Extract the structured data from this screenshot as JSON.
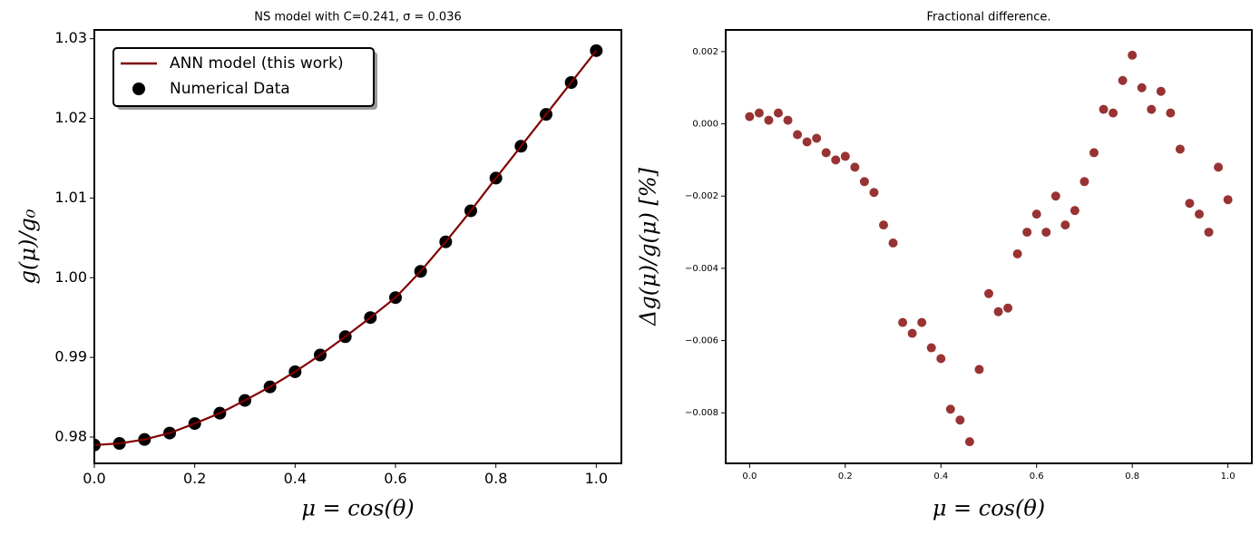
{
  "chart_data": [
    {
      "type": "line",
      "title": "NS model with C=0.241, σ = 0.036",
      "xlabel": "μ = cos(θ)",
      "ylabel": "g(μ)/g₀",
      "x": [
        0,
        0.05,
        0.1,
        0.15,
        0.2,
        0.25,
        0.3,
        0.35,
        0.4,
        0.45,
        0.5,
        0.55,
        0.6,
        0.65,
        0.7,
        0.75,
        0.8,
        0.85,
        0.9,
        0.95,
        1.0
      ],
      "series": [
        {
          "name": "ANN model (this work)",
          "color": "#800000",
          "style": "line",
          "values": [
            0.979,
            0.9792,
            0.9797,
            0.9805,
            0.9817,
            0.983,
            0.9846,
            0.9863,
            0.9882,
            0.9903,
            0.9926,
            0.995,
            0.9975,
            1.0008,
            1.0045,
            1.0084,
            1.0125,
            1.0165,
            1.0205,
            1.0245,
            1.0285
          ]
        },
        {
          "name": "Numerical Data",
          "color": "#000000",
          "style": "scatter",
          "values": [
            0.979,
            0.9792,
            0.9797,
            0.9805,
            0.9817,
            0.983,
            0.9846,
            0.9863,
            0.9882,
            0.9903,
            0.9926,
            0.995,
            0.9975,
            1.0008,
            1.0045,
            1.0084,
            1.0125,
            1.0165,
            1.0205,
            1.0245,
            1.0285
          ]
        }
      ],
      "xlim": [
        0,
        1.05
      ],
      "xticks": [
        {
          "value": 0,
          "label": "0.0"
        },
        {
          "value": 0.2,
          "label": "0.2"
        },
        {
          "value": 0.4,
          "label": "0.4"
        },
        {
          "value": 0.6,
          "label": "0.6"
        },
        {
          "value": 0.8,
          "label": "0.8"
        },
        {
          "value": 1.0,
          "label": "1.0"
        }
      ],
      "ylim": [
        0.9767,
        1.0311
      ],
      "yticks": [
        0.98,
        0.99,
        {
          "value": 1.0,
          "label": "1.00"
        },
        1.01,
        1.02,
        1.03
      ],
      "legend": "upper left"
    },
    {
      "type": "scatter",
      "title": "Fractional difference.",
      "xlabel": "μ = cos(θ)",
      "ylabel": "Δg(μ)/g(μ)  [%]",
      "color": "#800000",
      "x": [
        0,
        0.02,
        0.04,
        0.06,
        0.08,
        0.1,
        0.12,
        0.14,
        0.16,
        0.18,
        0.2,
        0.22,
        0.24,
        0.26,
        0.28,
        0.3,
        0.32,
        0.34,
        0.36,
        0.38,
        0.4,
        0.42,
        0.44,
        0.46,
        0.48,
        0.5,
        0.52,
        0.54,
        0.56,
        0.58,
        0.6,
        0.62,
        0.64,
        0.66,
        0.68,
        0.7,
        0.72,
        0.74,
        0.76,
        0.78,
        0.8,
        0.82,
        0.84,
        0.86,
        0.88,
        0.9,
        0.92,
        0.94,
        0.96,
        0.98,
        1.0
      ],
      "values": [
        0.0002,
        0.0003,
        0.0001,
        0.0003,
        0.0001,
        -0.0003,
        -0.0005,
        -0.0004,
        -0.0008,
        -0.001,
        -0.0009,
        -0.0012,
        -0.0016,
        -0.0019,
        -0.0028,
        -0.0033,
        -0.0055,
        -0.0058,
        -0.0055,
        -0.0062,
        -0.0065,
        -0.0079,
        -0.0082,
        -0.0088,
        -0.0068,
        -0.0047,
        -0.0052,
        -0.0051,
        -0.0036,
        -0.003,
        -0.0025,
        -0.003,
        -0.002,
        -0.0028,
        -0.0024,
        -0.0016,
        -0.0008,
        0.0004,
        0.0003,
        0.0012,
        0.0019,
        0.001,
        0.0004,
        0.0009,
        0.0003,
        -0.0007,
        -0.0022,
        -0.0025,
        -0.003,
        -0.0012,
        -0.0021
      ],
      "xlim": [
        -0.05,
        1.05
      ],
      "xticks": [
        {
          "value": 0,
          "label": "0.0"
        },
        {
          "value": 0.2,
          "label": "0.2"
        },
        {
          "value": 0.4,
          "label": "0.4"
        },
        {
          "value": 0.6,
          "label": "0.6"
        },
        {
          "value": 0.8,
          "label": "0.8"
        },
        {
          "value": 1.0,
          "label": "1.0"
        }
      ],
      "ylim": [
        -0.0094,
        0.0026
      ],
      "yticks": [
        {
          "value": -0.008,
          "label": "−0.008"
        },
        {
          "value": -0.006,
          "label": "−0.006"
        },
        {
          "value": -0.004,
          "label": "−0.004"
        },
        {
          "value": -0.002,
          "label": "−0.002"
        },
        {
          "value": 0,
          "label": "0.000"
        },
        {
          "value": 0.002,
          "label": "0.002"
        }
      ]
    }
  ]
}
